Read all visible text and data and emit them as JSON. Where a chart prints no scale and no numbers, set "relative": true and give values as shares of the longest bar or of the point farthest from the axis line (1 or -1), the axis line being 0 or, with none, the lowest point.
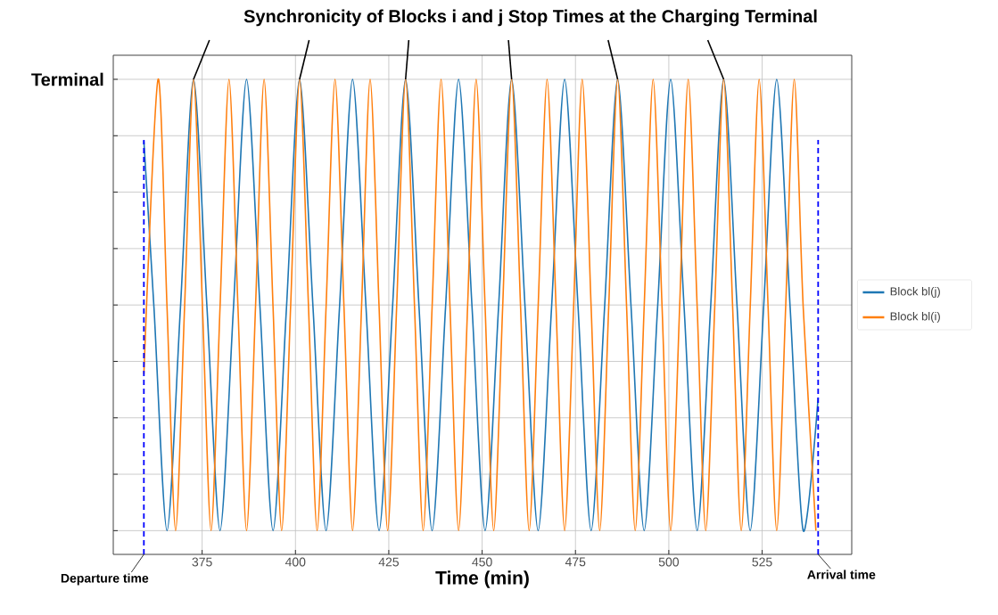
{
  "chart_data": {
    "type": "line",
    "title": "Synchronicity of Blocks i and j Stop Times at the Charging Terminal",
    "xlabel": "Time (min)",
    "ylabel": "Terminal",
    "relative": true,
    "xlim": [
      351.2,
      549
    ],
    "xticks": [
      375,
      400,
      425,
      450,
      475,
      500,
      525
    ],
    "grid": true,
    "legend": "right",
    "series": [
      {
        "name": "Block bl(j)",
        "color": "#1f77b4",
        "x": [
          359.4,
          362.1,
          365.6,
          369.2,
          372.7,
          376.3,
          379.8,
          383.4,
          386.9,
          390.5,
          394.0,
          397.6,
          401.1,
          404.7,
          408.2,
          411.8,
          415.3,
          418.9,
          422.4,
          426.0,
          429.5,
          433.1,
          436.6,
          440.2,
          443.7,
          447.3,
          450.8,
          454.4,
          457.9,
          461.5,
          465.0,
          468.6,
          472.1,
          475.7,
          479.2,
          482.8,
          486.3,
          489.9,
          493.4,
          497.0,
          500.5,
          504.1,
          507.6,
          511.2,
          514.7,
          518.3,
          521.8,
          525.4,
          528.9,
          532.5,
          536.0,
          540.0
        ],
        "values": [
          0.87,
          0.52,
          0.05,
          0.52,
          1,
          0.52,
          0.05,
          0.52,
          1,
          0.52,
          0.05,
          0.52,
          1,
          0.52,
          0.05,
          0.52,
          1,
          0.52,
          0.05,
          0.52,
          1,
          0.52,
          0.05,
          0.52,
          1,
          0.52,
          0.05,
          0.52,
          1,
          0.52,
          0.05,
          0.52,
          1,
          0.52,
          0.05,
          0.52,
          1,
          0.52,
          0.05,
          0.52,
          1,
          0.52,
          0.05,
          0.52,
          1,
          0.52,
          0.05,
          0.52,
          1,
          0.52,
          0.05,
          0.33
        ]
      },
      {
        "name": "Block bl(i)",
        "color": "#ff7f0e",
        "x": [
          359.4,
          363.2,
          365.6,
          367.9,
          370.3,
          372.7,
          375.1,
          377.4,
          379.8,
          382.2,
          384.6,
          386.9,
          389.3,
          391.6,
          394.0,
          396.3,
          398.7,
          401.1,
          403.5,
          405.8,
          408.2,
          410.6,
          413.0,
          415.3,
          417.7,
          420.0,
          422.4,
          424.7,
          427.1,
          429.5,
          431.9,
          434.2,
          436.6,
          439.0,
          441.4,
          443.7,
          446.1,
          448.4,
          450.8,
          453.1,
          455.5,
          457.9,
          460.3,
          462.6,
          465.0,
          467.4,
          469.8,
          472.1,
          474.5,
          476.8,
          479.2,
          481.5,
          483.9,
          486.3,
          488.7,
          491.0,
          493.4,
          495.8,
          498.2,
          500.5,
          502.9,
          505.2,
          507.6,
          509.9,
          512.3,
          514.7,
          517.1,
          519.4,
          521.8,
          524.2,
          526.6,
          528.9,
          531.3,
          533.6,
          536.0,
          539.4
        ],
        "values": [
          0.38,
          1,
          0.52,
          0.05,
          0.52,
          1,
          0.52,
          0.05,
          0.52,
          1,
          0.52,
          0.05,
          0.52,
          1,
          0.52,
          0.05,
          0.52,
          1,
          0.52,
          0.05,
          0.52,
          1,
          0.52,
          0.05,
          0.52,
          1,
          0.52,
          0.05,
          0.52,
          1,
          0.52,
          0.05,
          0.52,
          1,
          0.52,
          0.05,
          0.52,
          1,
          0.52,
          0.05,
          0.52,
          1,
          0.52,
          0.05,
          0.52,
          1,
          0.52,
          0.05,
          0.52,
          1,
          0.52,
          0.05,
          0.52,
          1,
          0.52,
          0.05,
          0.52,
          1,
          0.52,
          0.05,
          0.52,
          1,
          0.52,
          0.05,
          0.52,
          1,
          0.52,
          0.05,
          0.52,
          1,
          0.52,
          0.05,
          0.52,
          1,
          0.52,
          0.05
        ]
      }
    ],
    "ref_lines": [
      {
        "axis": "x",
        "value": 359.4,
        "label": "Departure time",
        "color": "#0000ff",
        "line_style": "dashed"
      },
      {
        "axis": "x",
        "value": 540.0,
        "label": "Arrival time",
        "color": "#0000ff",
        "line_style": "dashed"
      }
    ]
  }
}
